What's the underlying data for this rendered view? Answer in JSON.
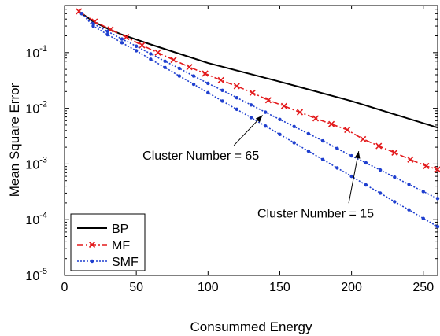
{
  "chart_data": {
    "type": "line",
    "title": "",
    "xlabel": "Consummed Energy",
    "ylabel": "Mean Square Error",
    "xlim": [
      0,
      260
    ],
    "ylim": [
      1e-05,
      0.7
    ],
    "yscale": "log",
    "grid": false,
    "legend_position": "bottom-left",
    "x_ticks": [
      0,
      50,
      100,
      150,
      200,
      250
    ],
    "y_ticks": [
      {
        "value": 1e-05,
        "base": "10",
        "exp": "-5"
      },
      {
        "value": 0.0001,
        "base": "10",
        "exp": "-4"
      },
      {
        "value": 0.001,
        "base": "10",
        "exp": "-3"
      },
      {
        "value": 0.01,
        "base": "10",
        "exp": "-2"
      },
      {
        "value": 0.1,
        "base": "10",
        "exp": "-1"
      }
    ],
    "series": [
      {
        "name": "BP",
        "style": "solid",
        "marker": "none",
        "color": "#000000",
        "points": [
          [
            10,
            0.55
          ],
          [
            20,
            0.36
          ],
          [
            30,
            0.27
          ],
          [
            40,
            0.21
          ],
          [
            60,
            0.14
          ],
          [
            100,
            0.065
          ],
          [
            150,
            0.03
          ],
          [
            200,
            0.0135
          ],
          [
            260,
            0.0045
          ]
        ]
      },
      {
        "name": "MF",
        "style": "dashdot",
        "marker": "x",
        "color": "#e31a1c",
        "points": [
          [
            10,
            0.55
          ],
          [
            21,
            0.36
          ],
          [
            32,
            0.26
          ],
          [
            43,
            0.19
          ],
          [
            54,
            0.135
          ],
          [
            65,
            0.1
          ],
          [
            76,
            0.074
          ],
          [
            87,
            0.055
          ],
          [
            98,
            0.042
          ],
          [
            109,
            0.032
          ],
          [
            120,
            0.025
          ],
          [
            131,
            0.019
          ],
          [
            142,
            0.014
          ],
          [
            153,
            0.011
          ],
          [
            164,
            0.0085
          ],
          [
            175,
            0.0066
          ],
          [
            186,
            0.0052
          ],
          [
            197,
            0.0041
          ],
          [
            208,
            0.0028
          ],
          [
            219,
            0.0021
          ],
          [
            230,
            0.0016
          ],
          [
            241,
            0.0012
          ],
          [
            252,
            0.00092
          ],
          [
            260,
            0.0008
          ]
        ]
      },
      {
        "name": "SMF",
        "style": "dotted",
        "marker": "dot",
        "color": "#1f3fcf",
        "points": [
          [
            12,
            0.5
          ],
          [
            20,
            0.3
          ],
          [
            30,
            0.21
          ],
          [
            40,
            0.15
          ],
          [
            50,
            0.108
          ],
          [
            60,
            0.076
          ],
          [
            70,
            0.054
          ],
          [
            80,
            0.038
          ],
          [
            90,
            0.027
          ],
          [
            100,
            0.019
          ],
          [
            110,
            0.0135
          ],
          [
            120,
            0.0096
          ],
          [
            130,
            0.0068
          ],
          [
            140,
            0.0048
          ],
          [
            150,
            0.0034
          ],
          [
            160,
            0.0024
          ],
          [
            170,
            0.0017
          ],
          [
            180,
            0.0012
          ],
          [
            190,
            0.00085
          ],
          [
            200,
            0.0006
          ],
          [
            210,
            0.00042
          ],
          [
            220,
            0.0003
          ],
          [
            230,
            0.00021
          ],
          [
            240,
            0.00015
          ],
          [
            250,
            0.000105
          ],
          [
            260,
            7.5e-05
          ]
        ]
      },
      {
        "name": "SMF-15",
        "style": "dotted",
        "marker": "dot",
        "color": "#1f3fcf",
        "points": [
          [
            12,
            0.5
          ],
          [
            20,
            0.33
          ],
          [
            30,
            0.24
          ],
          [
            40,
            0.175
          ],
          [
            50,
            0.13
          ],
          [
            60,
            0.095
          ],
          [
            70,
            0.07
          ],
          [
            80,
            0.052
          ],
          [
            90,
            0.038
          ],
          [
            100,
            0.028
          ],
          [
            110,
            0.021
          ],
          [
            120,
            0.0155
          ],
          [
            130,
            0.0115
          ],
          [
            140,
            0.0085
          ],
          [
            150,
            0.0063
          ],
          [
            160,
            0.0047
          ],
          [
            170,
            0.0035
          ],
          [
            180,
            0.0026
          ],
          [
            190,
            0.0019
          ],
          [
            200,
            0.0014
          ],
          [
            210,
            0.00105
          ],
          [
            220,
            0.00078
          ],
          [
            230,
            0.00058
          ],
          [
            240,
            0.00043
          ],
          [
            250,
            0.00032
          ],
          [
            260,
            0.00024
          ]
        ]
      }
    ],
    "annotations": [
      {
        "text": "Cluster Number = 65",
        "target": [
          138,
          0.0075
        ],
        "label_at": [
          95,
          0.0012
        ]
      },
      {
        "text": "Cluster Number = 15",
        "target": [
          205,
          0.0017
        ],
        "label_at": [
          175,
          0.00011
        ]
      }
    ]
  }
}
